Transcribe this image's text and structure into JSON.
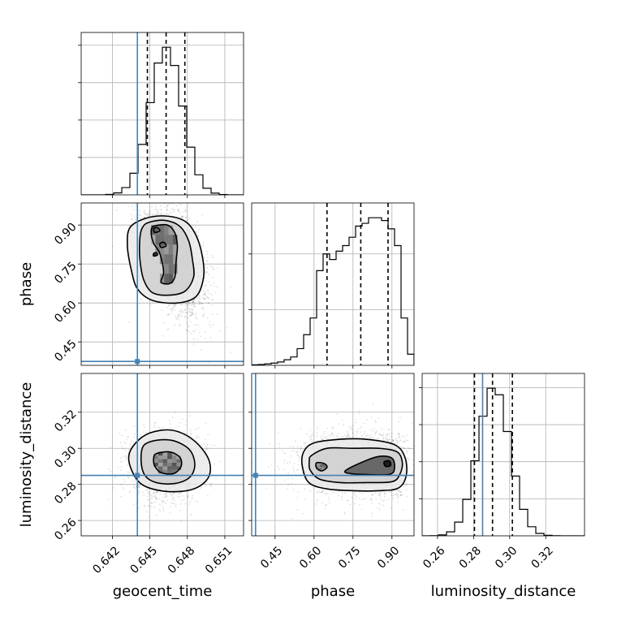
{
  "colors": {
    "truth": "#4682b4",
    "line": "#000000",
    "grid": "#b0b0b0",
    "scatter": "#000000"
  },
  "chart_data": {
    "type": "corner",
    "grid": true,
    "parameters": [
      {
        "key": "t",
        "label": "geocent_time",
        "range": [
          0.6395,
          0.6525
        ],
        "ticks": [
          0.642,
          0.645,
          0.648,
          0.651
        ],
        "tick_labels": [
          "0.642",
          "0.645",
          "0.648",
          "0.651"
        ],
        "truth": 0.644,
        "quantiles": [
          0.6448,
          0.6463,
          0.6478
        ],
        "mean": 0.6463,
        "sd": 0.0013
      },
      {
        "key": "p",
        "label": "phase",
        "range": [
          0.36,
          0.985
        ],
        "ticks": [
          0.45,
          0.6,
          0.75,
          0.9
        ],
        "tick_labels": [
          "0.45",
          "0.60",
          "0.75",
          "0.90"
        ],
        "truth": 0.375,
        "quantiles": [
          0.65,
          0.78,
          0.885
        ]
      },
      {
        "key": "d",
        "label": "luminosity_distance",
        "range": [
          0.2515,
          0.3415
        ],
        "ticks": [
          0.26,
          0.28,
          0.3,
          0.32
        ],
        "tick_labels": [
          "0.26",
          "0.28",
          "0.30",
          "0.32"
        ],
        "truth": 0.285,
        "quantiles": [
          0.2805,
          0.2905,
          0.3015
        ],
        "mean": 0.2912,
        "sd": 0.0088
      }
    ],
    "phase_histogram": {
      "edges": [
        0.36,
        0.385,
        0.41,
        0.435,
        0.46,
        0.485,
        0.51,
        0.535,
        0.56,
        0.585,
        0.61,
        0.635,
        0.66,
        0.685,
        0.71,
        0.735,
        0.76,
        0.785,
        0.81,
        0.835,
        0.86,
        0.885,
        0.91,
        0.935,
        0.96,
        0.985
      ],
      "counts": [
        0.2,
        0.3,
        0.5,
        0.8,
        1.2,
        2,
        3,
        6,
        11,
        17,
        34,
        40,
        38,
        41,
        43,
        46,
        50,
        51,
        53,
        53,
        52,
        49,
        43,
        17,
        4
      ]
    },
    "scatter_sd": {
      "t": 0.0013,
      "p": 0.09,
      "d": 0.0088
    },
    "contours": {
      "t_p": [
        [
          [
            0.6446,
            0.925
          ],
          [
            0.6462,
            0.935
          ],
          [
            0.6478,
            0.915
          ],
          [
            0.6487,
            0.86
          ],
          [
            0.6492,
            0.78
          ],
          [
            0.6493,
            0.7
          ],
          [
            0.6487,
            0.625
          ],
          [
            0.6472,
            0.6
          ],
          [
            0.6452,
            0.61
          ],
          [
            0.644,
            0.655
          ],
          [
            0.6435,
            0.73
          ],
          [
            0.6432,
            0.82
          ],
          [
            0.6434,
            0.89
          ]
        ],
        [
          [
            0.6449,
            0.91
          ],
          [
            0.6462,
            0.918
          ],
          [
            0.6474,
            0.895
          ],
          [
            0.6481,
            0.84
          ],
          [
            0.6484,
            0.77
          ],
          [
            0.6485,
            0.7
          ],
          [
            0.6478,
            0.645
          ],
          [
            0.6465,
            0.63
          ],
          [
            0.6452,
            0.64
          ],
          [
            0.6445,
            0.69
          ],
          [
            0.6442,
            0.77
          ],
          [
            0.6442,
            0.85
          ],
          [
            0.6444,
            0.89
          ]
        ],
        [
          [
            0.6453,
            0.895
          ],
          [
            0.6464,
            0.9
          ],
          [
            0.647,
            0.87
          ],
          [
            0.6472,
            0.82
          ],
          [
            0.6471,
            0.76
          ],
          [
            0.647,
            0.7
          ],
          [
            0.6466,
            0.675
          ],
          [
            0.6459,
            0.68
          ],
          [
            0.6461,
            0.72
          ],
          [
            0.6458,
            0.79
          ],
          [
            0.6453,
            0.83
          ],
          [
            0.6451,
            0.87
          ]
        ],
        [
          [
            0.6453,
            0.885
          ],
          [
            0.6456,
            0.89
          ],
          [
            0.6458,
            0.878
          ],
          [
            0.6454,
            0.872
          ]
        ],
        [
          [
            0.6458,
            0.828
          ],
          [
            0.6461,
            0.834
          ],
          [
            0.6463,
            0.82
          ],
          [
            0.6459,
            0.814
          ]
        ],
        [
          [
            0.6453,
            0.79
          ],
          [
            0.6455,
            0.794
          ],
          [
            0.6456,
            0.784
          ],
          [
            0.6453,
            0.781
          ]
        ]
      ],
      "p_d": [
        [
          [
            0.56,
            0.298
          ],
          [
            0.6,
            0.303
          ],
          [
            0.7,
            0.305
          ],
          [
            0.8,
            0.305
          ],
          [
            0.91,
            0.302
          ],
          [
            0.95,
            0.295
          ],
          [
            0.955,
            0.285
          ],
          [
            0.925,
            0.278
          ],
          [
            0.85,
            0.2765
          ],
          [
            0.75,
            0.2765
          ],
          [
            0.65,
            0.2775
          ],
          [
            0.58,
            0.281
          ],
          [
            0.555,
            0.29
          ]
        ],
        [
          [
            0.59,
            0.296
          ],
          [
            0.65,
            0.3
          ],
          [
            0.75,
            0.3
          ],
          [
            0.85,
            0.3
          ],
          [
            0.92,
            0.298
          ],
          [
            0.94,
            0.292
          ],
          [
            0.93,
            0.2855
          ],
          [
            0.9,
            0.2815
          ],
          [
            0.8,
            0.281
          ],
          [
            0.7,
            0.281
          ],
          [
            0.62,
            0.283
          ],
          [
            0.585,
            0.288
          ],
          [
            0.582,
            0.293
          ]
        ],
        [
          [
            0.61,
            0.292
          ],
          [
            0.64,
            0.2915
          ],
          [
            0.65,
            0.2895
          ],
          [
            0.63,
            0.2875
          ],
          [
            0.61,
            0.289
          ]
        ],
        [
          [
            0.72,
            0.2875
          ],
          [
            0.78,
            0.292
          ],
          [
            0.85,
            0.2955
          ],
          [
            0.9,
            0.2945
          ],
          [
            0.91,
            0.289
          ],
          [
            0.89,
            0.2855
          ],
          [
            0.8,
            0.2855
          ],
          [
            0.74,
            0.286
          ]
        ],
        [
          [
            0.87,
            0.2925
          ],
          [
            0.89,
            0.293
          ],
          [
            0.895,
            0.2905
          ],
          [
            0.875,
            0.29
          ]
        ]
      ],
      "t_d": [
        [
          [
            0.6438,
            0.3025
          ],
          [
            0.645,
            0.3085
          ],
          [
            0.6468,
            0.31
          ],
          [
            0.6485,
            0.3045
          ],
          [
            0.6497,
            0.294
          ],
          [
            0.6497,
            0.284
          ],
          [
            0.6485,
            0.2775
          ],
          [
            0.6465,
            0.276
          ],
          [
            0.6446,
            0.279
          ],
          [
            0.6437,
            0.2855
          ],
          [
            0.6433,
            0.295
          ]
        ],
        [
          [
            0.6445,
            0.3015
          ],
          [
            0.6456,
            0.3045
          ],
          [
            0.647,
            0.304
          ],
          [
            0.6482,
            0.299
          ],
          [
            0.6486,
            0.291
          ],
          [
            0.6482,
            0.284
          ],
          [
            0.647,
            0.2805
          ],
          [
            0.6455,
            0.281
          ],
          [
            0.6446,
            0.285
          ],
          [
            0.6443,
            0.293
          ]
        ],
        [
          [
            0.6455,
            0.297
          ],
          [
            0.6466,
            0.298
          ],
          [
            0.6474,
            0.295
          ],
          [
            0.6475,
            0.29
          ],
          [
            0.6469,
            0.286
          ],
          [
            0.6459,
            0.2865
          ],
          [
            0.6454,
            0.29
          ],
          [
            0.6453,
            0.294
          ]
        ]
      ]
    }
  }
}
